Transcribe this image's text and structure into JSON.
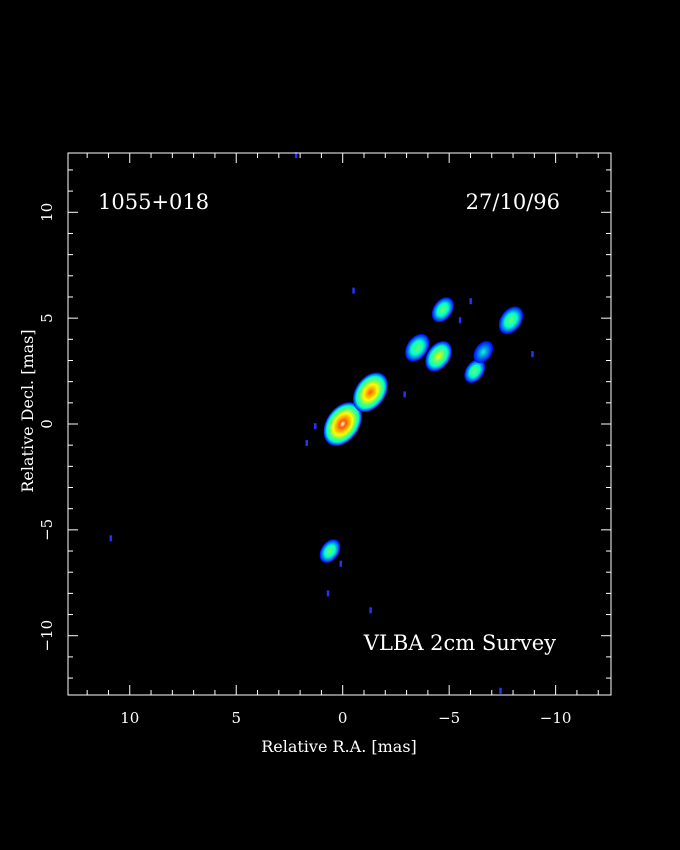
{
  "chart_data": {
    "type": "heatmap",
    "source_name": "1055+018",
    "date": "27/10/96",
    "survey_label": "VLBA 2cm Survey",
    "xlabel": "Relative R.A. [mas]",
    "ylabel": "Relative Decl. [mas]",
    "xlim": [
      12.9,
      -12.6
    ],
    "ylim": [
      -12.8,
      12.8
    ],
    "x_ticks": [
      10,
      5,
      0,
      -5,
      -10
    ],
    "x_tick_labels": [
      "10",
      "5",
      "0",
      "−5",
      "−10"
    ],
    "y_ticks": [
      10,
      5,
      0,
      -5,
      -10
    ],
    "y_tick_labels": [
      "10",
      "5",
      "0",
      "−5",
      "−10"
    ],
    "grid": false,
    "colormap": [
      "#0000ff",
      "#00ffcc",
      "#66ff66",
      "#ffff00",
      "#ffaa00",
      "#ff5500",
      "#ffffff"
    ],
    "components": [
      {
        "name": "core",
        "x": 0.0,
        "y": 0.0,
        "peak_level": 1.0
      },
      {
        "name": "inner-jet",
        "x": -1.3,
        "y": 1.5,
        "peak_level": 0.85
      },
      {
        "name": "jet-knot-a",
        "x": -4.5,
        "y": 3.2,
        "peak_level": 0.5
      },
      {
        "name": "jet-knot-b",
        "x": -3.5,
        "y": 3.6,
        "peak_level": 0.4
      },
      {
        "name": "jet-knot-c",
        "x": -4.7,
        "y": 5.4,
        "peak_level": 0.3
      },
      {
        "name": "jet-knot-d",
        "x": -7.9,
        "y": 4.9,
        "peak_level": 0.4
      },
      {
        "name": "jet-knot-e",
        "x": -6.2,
        "y": 2.5,
        "peak_level": 0.25
      },
      {
        "name": "jet-knot-f",
        "x": -6.6,
        "y": 3.4,
        "peak_level": 0.2
      },
      {
        "name": "south-blob",
        "x": 0.6,
        "y": -6.0,
        "peak_level": 0.25
      }
    ],
    "noise_points": [
      {
        "x": 10.9,
        "y": -5.4
      },
      {
        "x": 2.2,
        "y": 12.7
      },
      {
        "x": -0.5,
        "y": 6.3
      },
      {
        "x": 1.7,
        "y": -0.9
      },
      {
        "x": 1.3,
        "y": -0.1
      },
      {
        "x": 0.7,
        "y": -8.0
      },
      {
        "x": 0.1,
        "y": -6.6
      },
      {
        "x": -1.3,
        "y": -8.8
      },
      {
        "x": -2.9,
        "y": 1.4
      },
      {
        "x": -7.4,
        "y": -12.6
      },
      {
        "x": -8.9,
        "y": 3.3
      },
      {
        "x": -5.5,
        "y": 4.9
      },
      {
        "x": -6.0,
        "y": 5.8
      }
    ]
  }
}
